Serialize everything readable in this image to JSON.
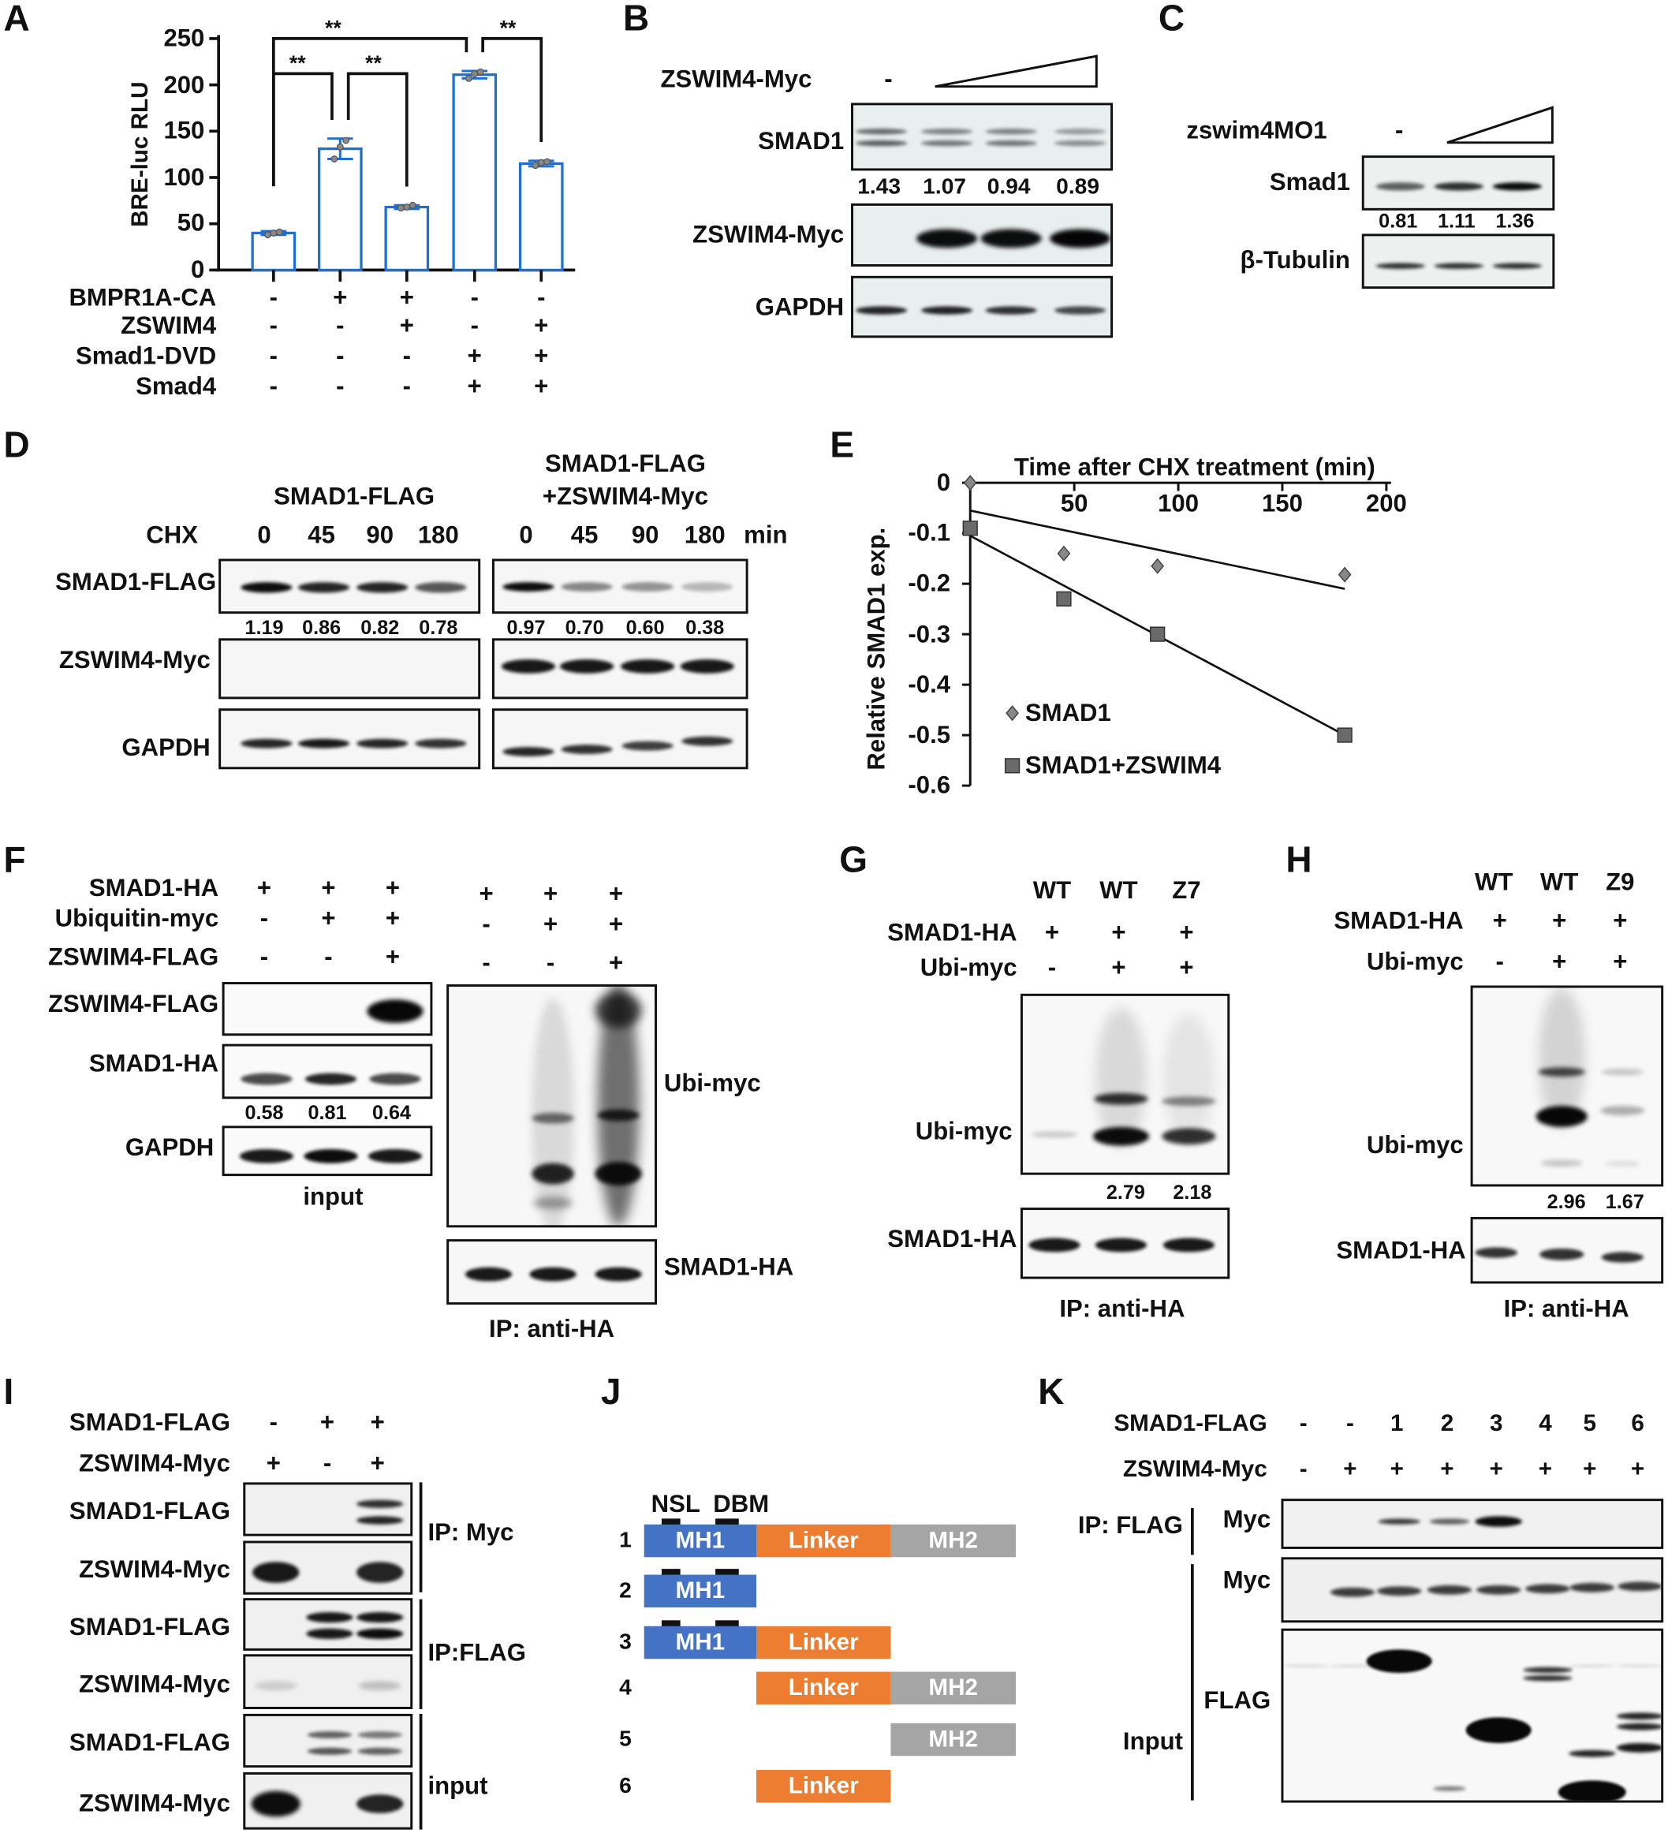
{
  "panels": {
    "A": {
      "label": "A",
      "conditions": [
        {
          "name": "BMPR1A-CA",
          "values": [
            "-",
            "+",
            "+",
            "-",
            "-"
          ]
        },
        {
          "name": "ZSWIM4",
          "values": [
            "-",
            "-",
            "+",
            "-",
            "+"
          ]
        },
        {
          "name": "Smad1-DVD",
          "values": [
            "-",
            "-",
            "-",
            "+",
            "+"
          ]
        },
        {
          "name": "Smad4",
          "values": [
            "-",
            "-",
            "-",
            "+",
            "+"
          ]
        }
      ]
    },
    "B": {
      "label": "B",
      "treatment": "ZSWIM4-Myc",
      "minus": "-",
      "blots": [
        "SMAD1",
        "ZSWIM4-Myc",
        "GAPDH"
      ],
      "quant": [
        "1.43",
        "1.07",
        "0.94",
        "0.89"
      ]
    },
    "C": {
      "label": "C",
      "treatment": "zswim4MO1",
      "minus": "-",
      "blots": [
        "Smad1",
        "β-Tubulin"
      ],
      "quant": [
        "0.81",
        "1.11",
        "1.36"
      ]
    },
    "D": {
      "label": "D",
      "group1": "SMAD1-FLAG",
      "group2": [
        "SMAD1-FLAG",
        "+ZSWIM4-Myc"
      ],
      "chx": "CHX",
      "times": [
        "0",
        "45",
        "90",
        "180"
      ],
      "unit": "min",
      "blots": [
        "SMAD1-FLAG",
        "ZSWIM4-Myc",
        "GAPDH"
      ],
      "quant1": [
        "1.19",
        "0.86",
        "0.82",
        "0.78"
      ],
      "quant2": [
        "0.97",
        "0.70",
        "0.60",
        "0.38"
      ]
    },
    "E": {
      "label": "E"
    },
    "F": {
      "label": "F",
      "conditions": [
        {
          "name": "SMAD1-HA",
          "values": [
            "+",
            "+",
            "+"
          ],
          "ip_values": [
            "+",
            "+",
            "+"
          ]
        },
        {
          "name": "Ubiquitin-myc",
          "values": [
            "-",
            "+",
            "+"
          ],
          "ip_values": [
            "-",
            "+",
            "+"
          ]
        },
        {
          "name": "ZSWIM4-FLAG",
          "values": [
            "-",
            "-",
            "+"
          ],
          "ip_values": [
            "-",
            "-",
            "+"
          ]
        }
      ],
      "input_blots": [
        "ZSWIM4-FLAG",
        "SMAD1-HA",
        "GAPDH"
      ],
      "quant": [
        "0.58",
        "0.81",
        "0.64"
      ],
      "input_label": "input",
      "ip_blots": [
        "Ubi-myc",
        "SMAD1-HA"
      ],
      "ip_label": "IP: anti-HA"
    },
    "G": {
      "label": "G",
      "genotypes": [
        "WT",
        "WT",
        "Z7"
      ],
      "conditions": [
        {
          "name": "SMAD1-HA",
          "values": [
            "+",
            "+",
            "+"
          ]
        },
        {
          "name": "Ubi-myc",
          "values": [
            "-",
            "+",
            "+"
          ]
        }
      ],
      "blots": [
        "Ubi-myc",
        "SMAD1-HA"
      ],
      "quant": [
        "2.79",
        "2.18"
      ],
      "ip_label": "IP: anti-HA"
    },
    "H": {
      "label": "H",
      "genotypes": [
        "WT",
        "WT",
        "Z9"
      ],
      "conditions": [
        {
          "name": "SMAD1-HA",
          "values": [
            "+",
            "+",
            "+"
          ]
        },
        {
          "name": "Ubi-myc",
          "values": [
            "-",
            "+",
            "+"
          ]
        }
      ],
      "blots": [
        "Ubi-myc",
        "SMAD1-HA"
      ],
      "quant": [
        "2.96",
        "1.67"
      ],
      "ip_label": "IP: anti-HA"
    },
    "I": {
      "label": "I",
      "conditions": [
        {
          "name": "SMAD1-FLAG",
          "values": [
            "-",
            "+",
            "+"
          ]
        },
        {
          "name": "ZSWIM4-Myc",
          "values": [
            "+",
            "-",
            "+"
          ]
        }
      ],
      "blots": [
        "SMAD1-FLAG",
        "ZSWIM4-Myc",
        "SMAD1-FLAG",
        "ZSWIM4-Myc",
        "SMAD1-FLAG",
        "ZSWIM4-Myc"
      ],
      "groups": [
        "IP: Myc",
        "IP:FLAG",
        "input"
      ]
    },
    "J": {
      "label": "J",
      "motifs": [
        "NSL",
        "DBM"
      ],
      "colors": {
        "MH1": "#4472c4",
        "Linker": "#ed7d31",
        "MH2": "#a5a5a5"
      },
      "constructs": [
        {
          "number": "1",
          "domains": [
            "MH1",
            "Linker",
            "MH2"
          ]
        },
        {
          "number": "2",
          "domains": [
            "MH1"
          ]
        },
        {
          "number": "3",
          "domains": [
            "MH1",
            "Linker"
          ]
        },
        {
          "number": "4",
          "domains": [
            "Linker",
            "MH2"
          ]
        },
        {
          "number": "5",
          "domains": [
            "MH2"
          ]
        },
        {
          "number": "6",
          "domains": [
            "Linker"
          ]
        }
      ]
    },
    "K": {
      "label": "K",
      "conditions": [
        {
          "name": "SMAD1-FLAG",
          "values": [
            "-",
            "-",
            "1",
            "2",
            "3",
            "4",
            "5",
            "6"
          ]
        },
        {
          "name": "ZSWIM4-Myc",
          "values": [
            "-",
            "+",
            "+",
            "+",
            "+",
            "+",
            "+",
            "+"
          ]
        }
      ],
      "ip_label": "IP: FLAG",
      "input_label": "Input",
      "blots": [
        "Myc",
        "Myc",
        "FLAG"
      ]
    }
  },
  "chart_data": [
    {
      "panel": "A",
      "type": "bar",
      "ylabel": "BRE-luc RLU",
      "ylim": [
        0,
        250
      ],
      "yticks": [
        "0",
        "50",
        "100",
        "150",
        "200",
        "250"
      ],
      "values": [
        40,
        131,
        68,
        211,
        115
      ],
      "errors": [
        2,
        11,
        2,
        4,
        3
      ],
      "points": [
        [
          38,
          40,
          41
        ],
        [
          120,
          133,
          140
        ],
        [
          67,
          68,
          70
        ],
        [
          207,
          212,
          214
        ],
        [
          113,
          116,
          117
        ]
      ],
      "bar_color": "#1f6fd1",
      "significance": [
        {
          "pair": [
            1,
            2
          ],
          "label": "**"
        },
        {
          "pair": [
            2,
            3
          ],
          "label": "**"
        },
        {
          "pair": [
            1,
            4
          ],
          "label": "**"
        },
        {
          "pair": [
            4,
            5
          ],
          "label": "**"
        }
      ]
    },
    {
      "panel": "E",
      "type": "scatter",
      "xlabel": "Time after CHX treatment (min)",
      "ylabel": "Relative SMAD1 exp.",
      "xlim": [
        0,
        200
      ],
      "ylim": [
        -0.6,
        0
      ],
      "xticks": [
        "50",
        "100",
        "150",
        "200"
      ],
      "yticks": [
        "0",
        "-0.1",
        "-0.2",
        "-0.3",
        "-0.4",
        "-0.5",
        "-0.6"
      ],
      "legend": "bottom-left",
      "series": [
        {
          "name": "SMAD1",
          "marker": "diamond",
          "x": [
            0,
            45,
            90,
            180
          ],
          "y": [
            0,
            -0.14,
            -0.165,
            -0.182
          ],
          "trendline": {
            "x": [
              0,
              180
            ],
            "y": [
              -0.055,
              -0.21
            ]
          }
        },
        {
          "name": "SMAD1+ZSWIM4",
          "marker": "square",
          "x": [
            0,
            45,
            90,
            180
          ],
          "y": [
            -0.09,
            -0.23,
            -0.3,
            -0.5
          ],
          "trendline": {
            "x": [
              0,
              180
            ],
            "y": [
              -0.105,
              -0.5
            ]
          }
        }
      ]
    }
  ]
}
